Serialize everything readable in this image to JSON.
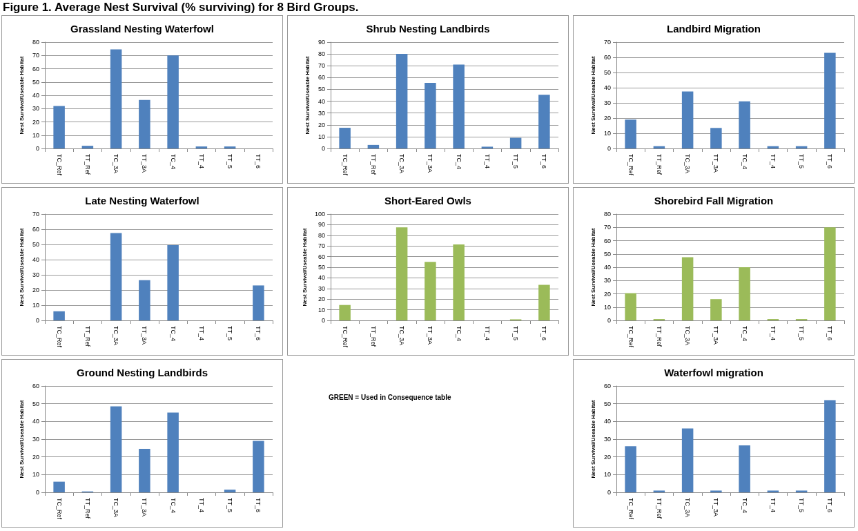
{
  "chart_data": [
    {
      "type": "other",
      "title": "Figure 1. Average Nest Survival (% surviving) for 8 Bird Groups."
    },
    {
      "type": "bar",
      "title": "Grassland Nesting Waterfowl",
      "ylabel": "Nest Survival/Useable Habitat",
      "categories": [
        "TC_Ref",
        "TT_Ref",
        "TC_3A",
        "TT_3A",
        "TC_4",
        "TT_4",
        "TT_5",
        "TT_6"
      ],
      "values": [
        32,
        2,
        74.5,
        36.5,
        70,
        1.5,
        1.5,
        0
      ],
      "color": "#4f81bd",
      "ylim": [
        0,
        80
      ],
      "yticks": [
        0,
        10,
        20,
        30,
        40,
        50,
        60,
        70,
        80
      ],
      "grid": "y"
    },
    {
      "type": "bar",
      "title": "Shrub Nesting Landbirds",
      "ylabel": "Nest Survival/Useable Habitat",
      "categories": [
        "TC_Ref",
        "TT_Ref",
        "TC_3A",
        "TT_3A",
        "TC_4",
        "TT_4",
        "TT_5",
        "TT_6"
      ],
      "values": [
        17.5,
        3,
        80,
        55.5,
        71,
        1.5,
        9,
        45.5
      ],
      "color": "#4f81bd",
      "ylim": [
        0,
        90
      ],
      "yticks": [
        0,
        10,
        20,
        30,
        40,
        50,
        60,
        70,
        80,
        90
      ],
      "grid": "y"
    },
    {
      "type": "bar",
      "title": "Landbird Migration",
      "ylabel": "Nest Survival/Useable Habitat",
      "categories": [
        "TC_Ref",
        "TT_Ref",
        "TC_3A",
        "TT_3A",
        "TC_4",
        "TT_4",
        "TT_5",
        "TT_6"
      ],
      "values": [
        19,
        1.5,
        37.5,
        13.5,
        31,
        1.5,
        1.5,
        63
      ],
      "color": "#4f81bd",
      "ylim": [
        0,
        70
      ],
      "yticks": [
        0,
        10,
        20,
        30,
        40,
        50,
        60,
        70
      ],
      "grid": "y"
    },
    {
      "type": "bar",
      "title": "Late Nesting Waterfowl",
      "ylabel": "Nest Survival/Useable Habitat",
      "categories": [
        "TC_Ref",
        "TT_Ref",
        "TC_3A",
        "TT_3A",
        "TC_4",
        "TT_4",
        "TT_5",
        "TT_6"
      ],
      "values": [
        6,
        0,
        57.5,
        26.5,
        49.5,
        0,
        0,
        23
      ],
      "color": "#4f81bd",
      "ylim": [
        0,
        70
      ],
      "yticks": [
        0,
        10,
        20,
        30,
        40,
        50,
        60,
        70
      ],
      "grid": "y"
    },
    {
      "type": "bar",
      "title": "Short-Eared Owls",
      "ylabel": "Nest Survival/Useable Habitat",
      "categories": [
        "TC_Ref",
        "TT_Ref",
        "TC_3A",
        "TT_3A",
        "TC_4",
        "TT_4",
        "TT_5",
        "TT_6"
      ],
      "values": [
        14.5,
        0,
        87.5,
        55,
        71.5,
        0,
        1,
        33.5
      ],
      "color": "#9bbb59",
      "ylim": [
        0,
        100
      ],
      "yticks": [
        0,
        10,
        20,
        30,
        40,
        50,
        60,
        70,
        80,
        90,
        100
      ],
      "grid": "y"
    },
    {
      "type": "bar",
      "title": "Shorebird Fall Migration",
      "ylabel": "Nest Survival/Useable Habitat",
      "categories": [
        "TC_Ref",
        "TT_Ref",
        "TC_3A",
        "TT_3A",
        "TC_4",
        "TT_4",
        "TT_5",
        "TT_6"
      ],
      "values": [
        20.5,
        1,
        47.5,
        16,
        40,
        1,
        1,
        70
      ],
      "color": "#9bbb59",
      "ylim": [
        0,
        80
      ],
      "yticks": [
        0,
        10,
        20,
        30,
        40,
        50,
        60,
        70,
        80
      ],
      "grid": "y"
    },
    {
      "type": "bar",
      "title": "Ground Nesting Landbirds",
      "ylabel": "Nest Survival/Useable Habitat",
      "categories": [
        "TC_Ref",
        "TT_Ref",
        "TC_3A",
        "TT_3A",
        "TC_4",
        "TT_4",
        "TT_5",
        "TT_6"
      ],
      "values": [
        6,
        0.5,
        48.5,
        24.5,
        45,
        0,
        1.5,
        29
      ],
      "color": "#4f81bd",
      "ylim": [
        0,
        60
      ],
      "yticks": [
        0,
        10,
        20,
        30,
        40,
        50,
        60
      ],
      "grid": "y"
    },
    {
      "type": "other",
      "annotations": [
        "GREEN = Used in Consequence table"
      ]
    },
    {
      "type": "bar",
      "title": "Waterfowl migration",
      "ylabel": "Nest Survival/Useable Habitat",
      "categories": [
        "TC_Ref",
        "TT_Ref",
        "TC_3A",
        "TT_3A",
        "TC_4",
        "TT_4",
        "TT_5",
        "TT_6"
      ],
      "values": [
        26,
        1,
        36,
        1,
        26.5,
        1,
        1,
        52
      ],
      "color": "#4f81bd",
      "ylim": [
        0,
        60
      ],
      "yticks": [
        0,
        10,
        20,
        30,
        40,
        50,
        60
      ],
      "grid": "y"
    }
  ]
}
